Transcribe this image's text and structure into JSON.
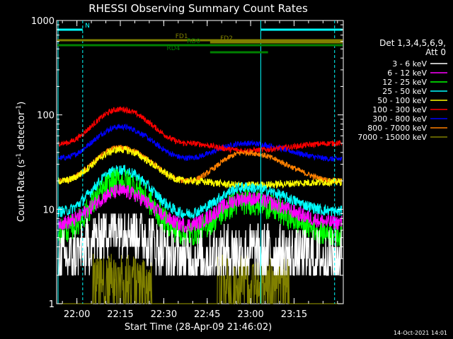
{
  "chart_data": {
    "type": "line",
    "title": "RHESSI Observing Summary Count Rates",
    "xlabel": "Start Time (28-Apr-09 21:46:02)",
    "ylabel_main": "Count Rate (s",
    "ylabel_sup1": "-1",
    "ylabel_mid": " detector",
    "ylabel_sup2": "-1",
    "ylabel_end": ")",
    "y_scale": "log",
    "ylim": [
      1,
      1000
    ],
    "xlim_minutes": [
      -7,
      92
    ],
    "x_ticks": [
      {
        "label": "22:00",
        "minute": 0
      },
      {
        "label": "22:15",
        "minute": 15
      },
      {
        "label": "22:30",
        "minute": 30
      },
      {
        "label": "22:45",
        "minute": 45
      },
      {
        "label": "23:00",
        "minute": 60
      },
      {
        "label": "23:15",
        "minute": 75
      }
    ],
    "y_ticks": [
      {
        "label": "1",
        "value": 1
      },
      {
        "label": "10",
        "value": 10
      },
      {
        "label": "100",
        "value": 100
      },
      {
        "label": "1000",
        "value": 1000
      }
    ],
    "legend_header": [
      "Det 1,3,4,5,6,9,",
      "Att 0"
    ],
    "legend_position": "right",
    "timestamp": "14-Oct-2021 14:01",
    "series": [
      {
        "name": "3 - 6 keV",
        "color": "#ffffff",
        "values": [
          3.0,
          6.8,
          3.0,
          3.6,
          3.0
        ],
        "noise": 0.3
      },
      {
        "name": "6 - 12 keV",
        "color": "#ff00ff",
        "values": [
          7.2,
          15.5,
          6.8,
          13.0,
          7.2
        ],
        "noise": 0.08
      },
      {
        "name": "12 - 25 keV",
        "color": "#00ff00",
        "values": [
          6.0,
          20.0,
          5.5,
          12.0,
          5.5
        ],
        "noise": 0.14
      },
      {
        "name": "25 - 50 keV",
        "color": "#00ffff",
        "values": [
          9.5,
          26.0,
          9.0,
          17.0,
          9.5
        ],
        "noise": 0.06
      },
      {
        "name": "50 - 100 keV",
        "color": "#ffff00",
        "values": [
          20.0,
          43.0,
          20.0,
          18.0,
          19.5
        ],
        "noise": 0.04
      },
      {
        "name": "100 - 300 keV",
        "color": "#ff0000",
        "values": [
          50.0,
          115.0,
          50.0,
          42.0,
          50.0
        ],
        "noise": 0.03
      },
      {
        "name": "300 - 800 keV",
        "color": "#0000ff",
        "values": [
          35.0,
          75.0,
          35.0,
          50.0,
          34.0
        ],
        "noise": 0.03
      },
      {
        "name": "800 - 7000 keV",
        "color": "#ff8000",
        "values": [
          20.0,
          45.0,
          20.0,
          40.0,
          20.0
        ],
        "noise": 0.03
      },
      {
        "name": "7000 - 15000 keV",
        "color": "#808000",
        "values": [
          1.0,
          2.4,
          1.0,
          2.4,
          1.0
        ],
        "noise": 0.0
      }
    ],
    "value_points_minutes": [
      -5,
      15,
      38,
      58,
      90
    ],
    "flags": [
      {
        "label": "N",
        "color": "#00ffff",
        "segments": [
          [
            -7,
            2
          ],
          [
            63.5,
            92
          ]
        ]
      },
      {
        "label": "FD1",
        "color": "#808000",
        "segments": [
          [
            -7,
            92
          ]
        ]
      },
      {
        "label": "FD2",
        "color": "#808000",
        "segments": [
          [
            46,
            92
          ]
        ]
      },
      {
        "label": "RD0",
        "color": "#008000",
        "segments": [
          [
            -7,
            92
          ]
        ]
      },
      {
        "label": "RD4",
        "color": "#008000",
        "segments": [
          [
            46,
            66
          ]
        ]
      }
    ],
    "vlines_cyan_minutes": [
      -6.5,
      2,
      63.5,
      89
    ]
  }
}
